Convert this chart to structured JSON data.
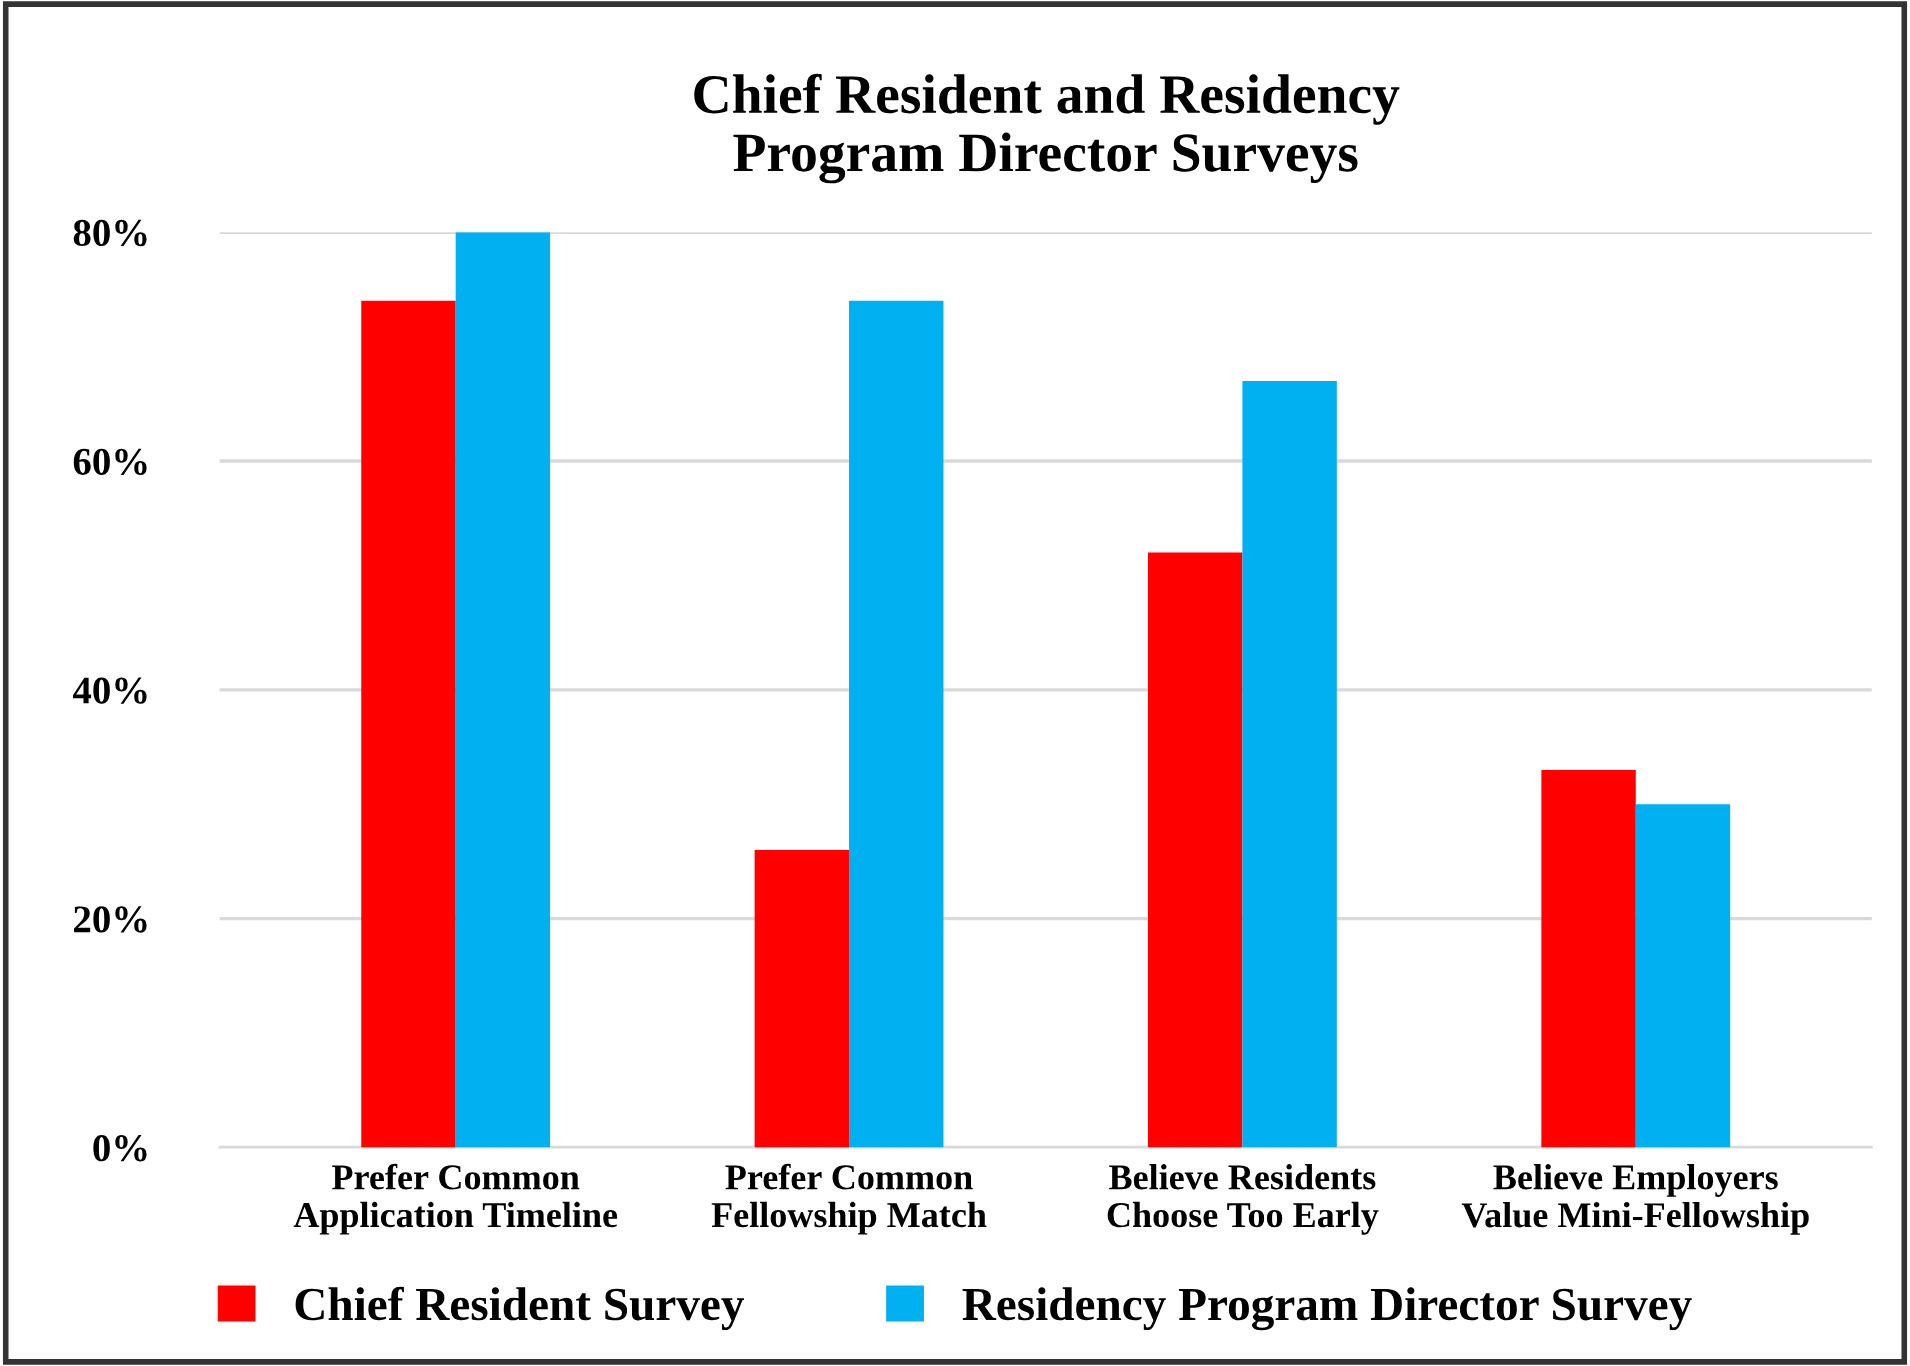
{
  "chart_data": {
    "type": "bar",
    "title": "Chief Resident and Residency\nProgram Director Surveys",
    "categories": [
      "Prefer Common\nApplication Timeline",
      "Prefer Common\nFellowship Match",
      "Believe Residents\nChoose Too Early",
      "Believe Employers\nValue Mini-Fellowship"
    ],
    "series": [
      {
        "name": "Chief Resident Survey",
        "color": "#ff0000",
        "values": [
          74,
          26,
          52,
          33
        ]
      },
      {
        "name": "Residency Program Director Survey",
        "color": "#00b0f0",
        "values": [
          80,
          74,
          67,
          30
        ]
      }
    ],
    "ylim": [
      0,
      80
    ],
    "yticks": [
      {
        "value": 0,
        "label": "0%"
      },
      {
        "value": 20,
        "label": "20%"
      },
      {
        "value": 40,
        "label": "40%"
      },
      {
        "value": 60,
        "label": "60%"
      },
      {
        "value": 80,
        "label": "80%"
      }
    ],
    "grid": "y",
    "legend": "bottom"
  }
}
